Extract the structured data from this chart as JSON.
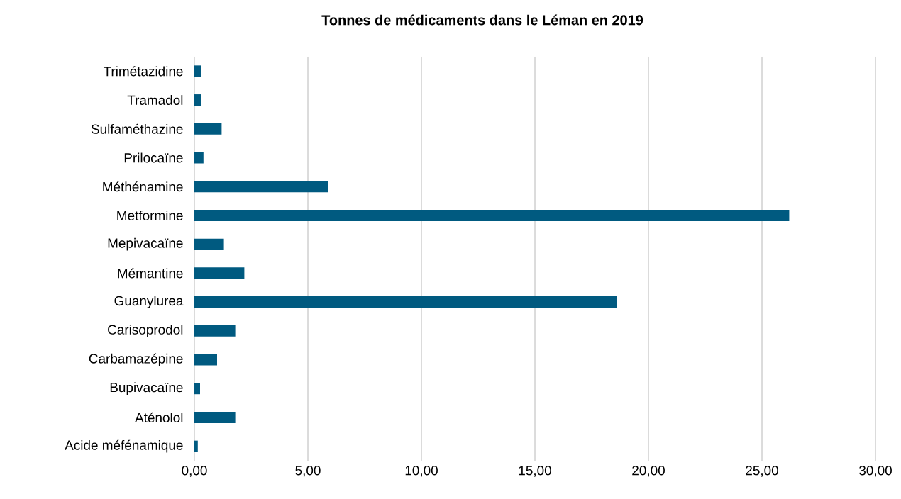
{
  "chart_data": {
    "type": "bar",
    "orientation": "horizontal",
    "title": "Tonnes de médicaments dans le Léman en 2019",
    "categories": [
      "Trimétazidine",
      "Tramadol",
      "Sulfaméthazine",
      "Prilocaïne",
      "Méthénamine",
      "Metformine",
      "Mepivacaïne",
      "Mémantine",
      "Guanylurea",
      "Carisoprodol",
      "Carbamazépine",
      "Bupivacaïne",
      "Aténolol",
      "Acide méfénamique"
    ],
    "values": [
      0.3,
      0.3,
      1.2,
      0.4,
      5.9,
      26.2,
      1.3,
      2.2,
      18.6,
      1.8,
      1.0,
      0.25,
      1.8,
      0.15
    ],
    "color": "#005a80",
    "xlim": [
      0,
      30
    ],
    "xticks": [
      {
        "value": 0,
        "label": "0,00"
      },
      {
        "value": 5,
        "label": "5,00"
      },
      {
        "value": 10,
        "label": "10,00"
      },
      {
        "value": 15,
        "label": "15,00"
      },
      {
        "value": 20,
        "label": "20,00"
      },
      {
        "value": 25,
        "label": "25,00"
      },
      {
        "value": 30,
        "label": "30,00"
      }
    ],
    "grid": "x"
  }
}
